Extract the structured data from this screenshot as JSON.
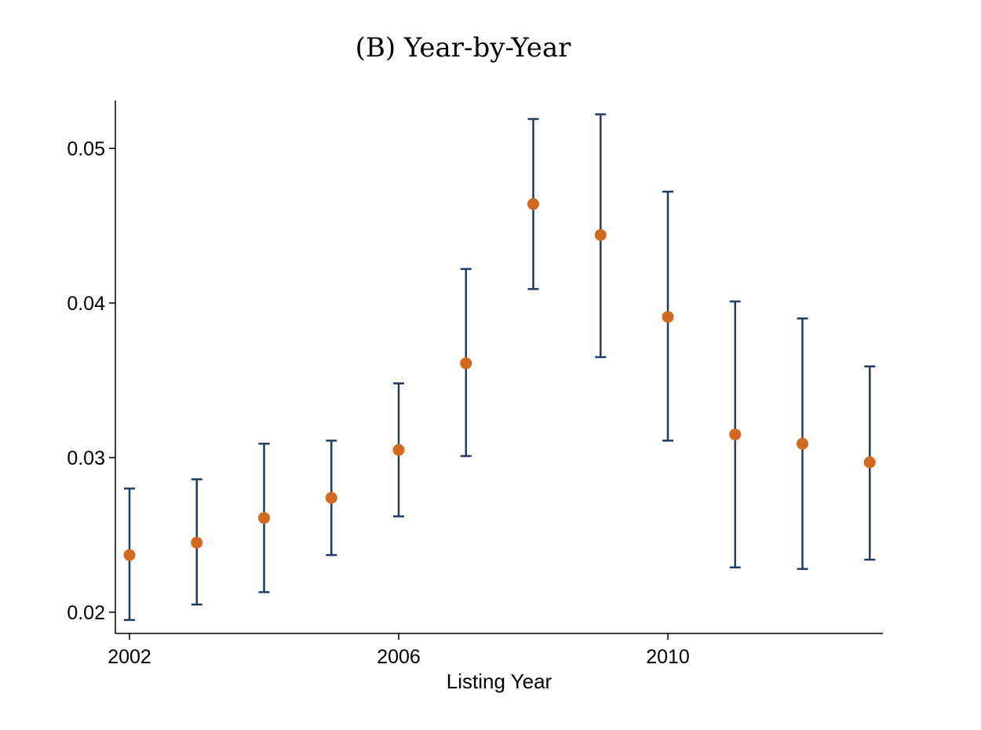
{
  "chart_data": {
    "type": "scatter",
    "title": "(B)  Year-by-Year",
    "xlabel": "Listing Year",
    "ylabel": "",
    "x_ticks": [
      2002,
      2006,
      2010
    ],
    "y_ticks": [
      0.02,
      0.03,
      0.04,
      0.05
    ],
    "y_tick_labels": [
      "0.02",
      "0.03",
      "0.04",
      "0.05"
    ],
    "xlim": [
      2001.8,
      2013.2
    ],
    "ylim": [
      0.0186,
      0.0531
    ],
    "grid": false,
    "legend": "none",
    "point_color": "#d2691e",
    "errorbar_color": "#1f3e66",
    "series": [
      {
        "x": [
          2002,
          2003,
          2004,
          2005,
          2006,
          2007,
          2008,
          2009,
          2010,
          2011,
          2012,
          2013
        ],
        "y": [
          0.0237,
          0.0245,
          0.0261,
          0.0274,
          0.0305,
          0.0361,
          0.0464,
          0.0444,
          0.0391,
          0.0315,
          0.0309,
          0.0297
        ],
        "ci_low": [
          0.0195,
          0.0205,
          0.0213,
          0.0237,
          0.0262,
          0.0301,
          0.0409,
          0.0365,
          0.0311,
          0.0229,
          0.0228,
          0.0234
        ],
        "ci_high": [
          0.028,
          0.0286,
          0.0309,
          0.0311,
          0.0348,
          0.0422,
          0.0519,
          0.0522,
          0.0472,
          0.0401,
          0.039,
          0.0359
        ]
      }
    ]
  }
}
